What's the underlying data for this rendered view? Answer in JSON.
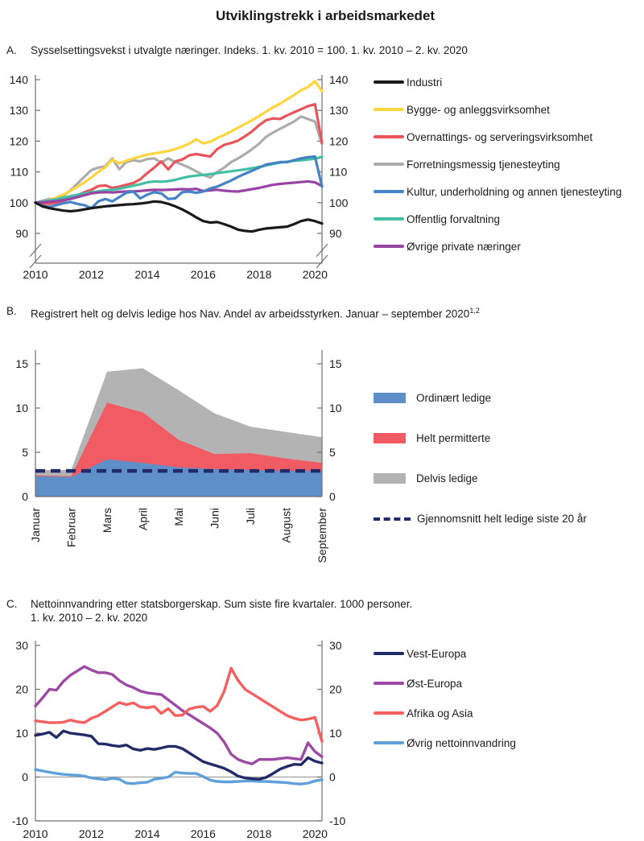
{
  "page": {
    "title": "Utviklingstrekk i arbeidsmarkedet"
  },
  "panels": [
    {
      "letter": "A.",
      "title": "Sysselsettingsvekst i utvalgte næringer. Indeks. 1. kv. 2010 = 100. 1. kv. 2010 – 2. kv. 2020"
    },
    {
      "letter": "B.",
      "title": "Registrert helt og delvis ledige hos Nav. Andel av arbeidsstyrken. Januar – september 2020",
      "footnote_marker": "1,2"
    },
    {
      "letter": "C.",
      "title_line1": "Nettoinnvandring etter statsborgerskap. Sum siste fire kvartaler. 1000 personer.",
      "title_line2": "1. kv. 2010 – 2. kv. 2020"
    }
  ],
  "chart_data": [
    {
      "type": "line",
      "panel": "A",
      "title": "Sysselsettingsvekst i utvalgte næringer. Indeks. 1. kv. 2010 = 100",
      "x_start": 2010,
      "x_step": 0.25,
      "xlim": [
        2010,
        2020.25
      ],
      "x_ticks": [
        2010,
        2012,
        2014,
        2016,
        2018,
        2020
      ],
      "y_ticks": [
        90,
        100,
        110,
        120,
        130,
        140
      ],
      "ylim": [
        90,
        141
      ],
      "axis_break": true,
      "series": [
        {
          "name": "Industri",
          "color": "#1A1A1A",
          "values": [
            100,
            98.8,
            98.2,
            97.8,
            97.4,
            97.2,
            97.4,
            97.8,
            98.2,
            98.5,
            98.8,
            99.0,
            99.2,
            99.4,
            99.5,
            99.7,
            100.0,
            100.4,
            100.2,
            99.6,
            98.8,
            97.8,
            96.6,
            95.2,
            94.0,
            93.5,
            93.7,
            93.0,
            92.2,
            91.2,
            90.8,
            90.6,
            91.2,
            91.6,
            91.8,
            92.0,
            92.2,
            93.0,
            94.0,
            94.5,
            94.0,
            93.2
          ]
        },
        {
          "name": "Bygge- og anleggsvirksomhet",
          "color": "#FFD53E",
          "values": [
            100,
            100.2,
            100.8,
            101.6,
            102.6,
            103.8,
            105.2,
            106.6,
            108.2,
            110.0,
            111.5,
            114.0,
            112.8,
            113.6,
            114.4,
            115.0,
            115.6,
            116.0,
            116.4,
            116.8,
            117.4,
            118.2,
            119.2,
            120.6,
            119.3,
            119.8,
            121.0,
            122.0,
            123.2,
            124.4,
            125.6,
            126.8,
            128.2,
            129.6,
            131.0,
            132.2,
            133.6,
            135.0,
            136.6,
            137.6,
            139.5,
            136.2
          ]
        },
        {
          "name": "Overnattings- og serveringsvirksomhet",
          "color": "#E8545A",
          "values": [
            100,
            99.8,
            99.6,
            100.0,
            100.6,
            101.4,
            102.4,
            103.4,
            104.2,
            105.4,
            105.6,
            104.8,
            105.2,
            105.8,
            106.4,
            107.6,
            109.6,
            111.4,
            113.4,
            110.8,
            113.4,
            114.0,
            115.4,
            115.8,
            115.4,
            115.0,
            117.4,
            118.8,
            119.4,
            120.2,
            121.6,
            123.2,
            125.2,
            126.8,
            127.4,
            127.2,
            128.4,
            129.4,
            130.4,
            131.4,
            132.0,
            119.5
          ]
        },
        {
          "name": "Forretningsmessig tjenesteyting",
          "color": "#ACACAC",
          "values": [
            100,
            100.6,
            101.2,
            101.0,
            102.2,
            104.0,
            106.2,
            108.4,
            110.6,
            111.4,
            111.8,
            114.4,
            110.9,
            113.2,
            113.8,
            113.4,
            114.2,
            114.4,
            113.0,
            114.4,
            113.2,
            112.4,
            111.4,
            110.2,
            109.0,
            108.2,
            110.0,
            111.4,
            113.2,
            114.4,
            115.8,
            117.4,
            119.2,
            121.4,
            122.8,
            124.0,
            125.2,
            126.4,
            128.0,
            127.2,
            126.4,
            119.0
          ]
        },
        {
          "name": "Kultur, underholdning og annen tjenesteyting",
          "color": "#4583C4",
          "values": [
            100,
            99.0,
            98.6,
            99.2,
            99.8,
            100.2,
            99.6,
            99.2,
            98.2,
            100.4,
            101.2,
            100.4,
            101.8,
            103.2,
            103.6,
            101.4,
            102.6,
            103.4,
            103.0,
            101.2,
            101.4,
            103.4,
            103.6,
            103.2,
            103.6,
            104.6,
            105.2,
            106.2,
            107.2,
            108.4,
            109.4,
            110.4,
            111.4,
            112.4,
            112.8,
            113.2,
            113.2,
            113.8,
            114.4,
            114.8,
            115.0,
            105.2
          ]
        },
        {
          "name": "Offentlig forvaltning",
          "color": "#43BFA5",
          "values": [
            100,
            100.3,
            100.7,
            101.1,
            101.6,
            102.1,
            102.6,
            103.0,
            103.4,
            103.7,
            104.0,
            104.2,
            104.5,
            105.0,
            105.5,
            106.0,
            106.6,
            106.9,
            106.8,
            107.0,
            107.4,
            108.0,
            108.5,
            108.8,
            109.0,
            109.3,
            109.6,
            109.9,
            110.2,
            110.5,
            110.8,
            111.2,
            111.6,
            112.1,
            112.6,
            113.0,
            113.3,
            113.6,
            113.8,
            114.0,
            114.3,
            114.9
          ]
        },
        {
          "name": "Øvrige private næringer",
          "color": "#9844A4",
          "values": [
            100,
            100.1,
            100.3,
            100.5,
            100.8,
            101.2,
            101.8,
            102.4,
            103.0,
            103.3,
            103.4,
            103.3,
            103.5,
            103.6,
            103.7,
            103.8,
            104.0,
            104.2,
            104.1,
            104.2,
            104.3,
            104.4,
            104.3,
            104.5,
            103.8,
            104.0,
            104.2,
            103.9,
            103.7,
            103.6,
            104.0,
            104.4,
            104.8,
            105.3,
            105.8,
            106.1,
            106.3,
            106.5,
            106.7,
            106.9,
            106.6,
            105.4
          ]
        }
      ]
    },
    {
      "type": "area",
      "panel": "B",
      "title": "Registrert helt og delvis ledige hos Nav. Andel av arbeidsstyrken",
      "stacked": true,
      "categories": [
        "Januar",
        "Februar",
        "Mars",
        "April",
        "Mai",
        "Juni",
        "Juli",
        "August",
        "September"
      ],
      "y_ticks": [
        0,
        5,
        10,
        15
      ],
      "ylim": [
        0,
        16.5
      ],
      "series": [
        {
          "name": "Ordinært ledige",
          "color": "#5E8FC9",
          "values": [
            2.3,
            2.2,
            4.2,
            3.8,
            3.3,
            3.1,
            3.0,
            2.9,
            2.9
          ]
        },
        {
          "name": "Helt permitterte",
          "color": "#F15B63",
          "values": [
            0.1,
            0.1,
            6.4,
            5.7,
            3.1,
            1.7,
            1.9,
            1.4,
            0.9
          ]
        },
        {
          "name": "Delvis ledige",
          "color": "#B3B3B3",
          "values": [
            0.6,
            0.7,
            3.5,
            5.0,
            5.6,
            4.6,
            3.0,
            3.0,
            2.9
          ]
        }
      ],
      "reference_line": {
        "name": "Gjennomsnitt helt ledige siste 20 år",
        "value": 2.9,
        "color": "#232A68",
        "style": "dashed"
      }
    },
    {
      "type": "line",
      "panel": "C",
      "title": "Nettoinnvandring etter statsborgerskap. Sum siste fire kvartaler. 1000 personer",
      "x_start": 2010,
      "x_step": 0.25,
      "xlim": [
        2010,
        2020.25
      ],
      "x_ticks": [
        2010,
        2012,
        2014,
        2016,
        2018,
        2020
      ],
      "y_ticks": [
        -10,
        0,
        10,
        20,
        30
      ],
      "ylim": [
        -10,
        31
      ],
      "zero_line": true,
      "series": [
        {
          "name": "Vest-Europa",
          "color": "#232A68",
          "values": [
            9.5,
            9.8,
            10.2,
            9.0,
            10.5,
            10.0,
            9.8,
            9.6,
            9.3,
            7.6,
            7.5,
            7.2,
            7.0,
            7.3,
            6.4,
            6.1,
            6.5,
            6.3,
            6.6,
            7.0,
            7.0,
            6.5,
            5.5,
            4.5,
            3.5,
            3.0,
            2.5,
            2.0,
            1.2,
            0.2,
            -0.2,
            -0.4,
            -0.5,
            -0.1,
            0.8,
            1.8,
            2.4,
            2.9,
            2.8,
            4.4,
            3.6,
            3.2
          ]
        },
        {
          "name": "Øst-Europa",
          "color": "#9B4BA4",
          "values": [
            16.2,
            18.0,
            20.0,
            19.8,
            21.8,
            23.2,
            24.2,
            25.2,
            24.4,
            23.8,
            23.8,
            23.4,
            22.0,
            21.0,
            20.4,
            19.6,
            19.2,
            19.0,
            18.8,
            17.6,
            16.4,
            15.2,
            14.2,
            13.2,
            12.2,
            11.2,
            10.0,
            8.0,
            5.2,
            4.0,
            3.4,
            3.0,
            4.0,
            4.0,
            4.0,
            4.2,
            4.4,
            4.2,
            4.0,
            7.8,
            5.8,
            4.6
          ]
        },
        {
          "name": "Afrika og Asia",
          "color": "#F4605F",
          "values": [
            12.8,
            12.6,
            12.4,
            12.4,
            12.5,
            13.0,
            12.6,
            12.4,
            13.4,
            14.0,
            15.0,
            16.0,
            17.0,
            16.5,
            16.9,
            16.0,
            15.8,
            16.1,
            14.5,
            15.6,
            14.0,
            14.1,
            15.5,
            15.9,
            16.1,
            15.0,
            16.3,
            19.5,
            24.8,
            22.0,
            20.0,
            19.0,
            18.0,
            17.0,
            16.0,
            15.0,
            14.0,
            13.4,
            13.0,
            13.2,
            13.6,
            8.1
          ]
        },
        {
          "name": "Øvrig nettoinnvandring",
          "color": "#5FA0DA",
          "values": [
            1.7,
            1.4,
            1.1,
            0.8,
            0.6,
            0.5,
            0.4,
            0.2,
            -0.2,
            -0.4,
            -0.6,
            -0.3,
            -0.5,
            -1.4,
            -1.5,
            -1.3,
            -1.2,
            -0.5,
            -0.3,
            0.0,
            1.1,
            0.9,
            0.8,
            0.8,
            0.1,
            -0.7,
            -1.0,
            -1.1,
            -1.1,
            -1.0,
            -0.9,
            -0.9,
            -1.0,
            -1.0,
            -1.1,
            -1.2,
            -1.3,
            -1.5,
            -1.6,
            -1.4,
            -0.9,
            -0.6
          ]
        }
      ]
    }
  ]
}
